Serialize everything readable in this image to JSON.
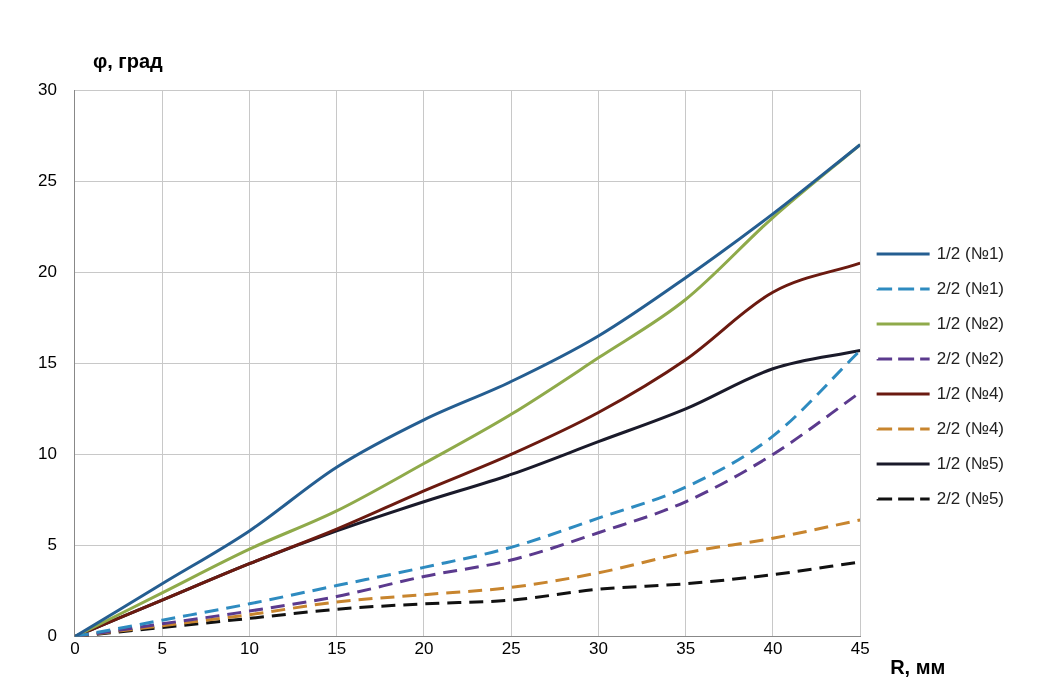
{
  "chart_data": {
    "type": "line",
    "xlabel": "R, мм",
    "ylabel": "φ, град",
    "x": [
      0,
      5,
      10,
      15,
      20,
      25,
      30,
      35,
      40,
      45
    ],
    "xlim": [
      0,
      45
    ],
    "xticks": [
      0,
      5,
      10,
      15,
      20,
      25,
      30,
      35,
      40,
      45
    ],
    "ylim": [
      0,
      30
    ],
    "yticks": [
      0,
      5,
      10,
      15,
      20,
      25,
      30
    ],
    "grid": true,
    "legend": "right",
    "marker": "none",
    "series": [
      {
        "name": "1/2 (№1)",
        "color": "#255e91",
        "line_style": "solid",
        "values": [
          0,
          2.9,
          5.8,
          9.3,
          11.9,
          14,
          16.5,
          19.7,
          23.2,
          27
        ]
      },
      {
        "name": "2/2 (№1)",
        "color": "#2e8bc0",
        "line_style": "dashed",
        "values": [
          0,
          0.9,
          1.8,
          2.8,
          3.8,
          4.9,
          6.5,
          8.2,
          11,
          15.7
        ]
      },
      {
        "name": "1/2 (№2)",
        "color": "#8faa4a",
        "line_style": "solid",
        "values": [
          0,
          2.4,
          4.8,
          6.9,
          9.5,
          12.2,
          15.3,
          18.5,
          23,
          27
        ]
      },
      {
        "name": "2/2 (№2)",
        "color": "#5b3a8e",
        "line_style": "dashed",
        "values": [
          0,
          0.7,
          1.4,
          2.2,
          3.3,
          4.2,
          5.7,
          7.4,
          10,
          13.4
        ]
      },
      {
        "name": "1/2 (№4)",
        "color": "#6b1a10",
        "line_style": "solid",
        "values": [
          0,
          2,
          4,
          5.9,
          8,
          10,
          12.3,
          15.2,
          18.9,
          20.5
        ]
      },
      {
        "name": "2/2 (№4)",
        "color": "#c8852e",
        "line_style": "dashed",
        "values": [
          0,
          0.6,
          1.2,
          1.9,
          2.3,
          2.7,
          3.5,
          4.6,
          5.4,
          6.4
        ]
      },
      {
        "name": "1/2 (№5)",
        "color": "#1a1a2a",
        "line_style": "solid",
        "values": [
          0,
          2,
          4,
          5.8,
          7.4,
          8.9,
          10.7,
          12.5,
          14.7,
          15.7
        ]
      },
      {
        "name": "2/2 (№5)",
        "color": "#111111",
        "line_style": "dashed",
        "values": [
          0,
          0.5,
          1,
          1.5,
          1.8,
          2,
          2.6,
          2.9,
          3.4,
          4.1
        ]
      }
    ]
  }
}
